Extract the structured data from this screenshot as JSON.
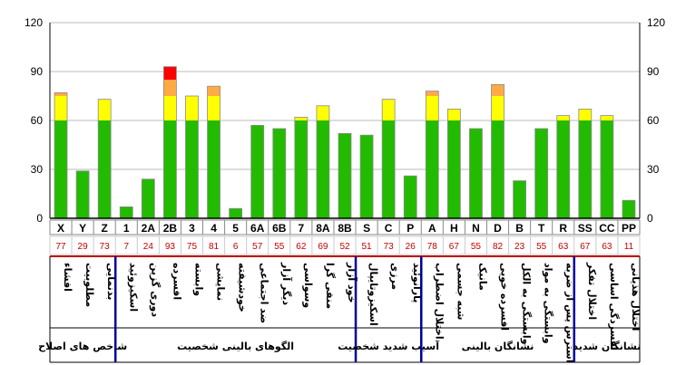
{
  "chart_data": {
    "type": "bar",
    "stacked": true,
    "ylim": [
      0,
      120
    ],
    "yticks": [
      0,
      30,
      60,
      90,
      120
    ],
    "grid": true,
    "categories": [
      "X",
      "Y",
      "Z",
      "1",
      "2A",
      "2B",
      "3",
      "4",
      "5",
      "6A",
      "6B",
      "7",
      "8A",
      "8B",
      "S",
      "C",
      "P",
      "A",
      "H",
      "N",
      "D",
      "B",
      "T",
      "R",
      "SS",
      "CC",
      "PP"
    ],
    "values": [
      77,
      29,
      73,
      7,
      24,
      93,
      75,
      81,
      6,
      57,
      55,
      62,
      69,
      52,
      51,
      73,
      26,
      78,
      67,
      55,
      82,
      23,
      55,
      63,
      67,
      63,
      11
    ],
    "descriptions": [
      "افشاء",
      "مطلوبیت",
      "بدنمایی",
      "اسکیزوئید",
      "دوری گزین",
      "افسرده",
      "وابسته",
      "نمایشی",
      "خودشیفته",
      "ضد اجتماعی",
      "دیگر آزار",
      "وسواسی",
      "منفی گرا",
      "خود آزار",
      "اسکیزوتایپال",
      "مرزی",
      "پارانوئید",
      "اختلال اضطراب",
      "شبه جسمی",
      "مانیک",
      "افسرده خویی",
      "وابستگی به الکل",
      "وابستگی به مواد",
      "استرس پس از ضربه",
      "اختلال تفکر",
      "افسردگی اساسی",
      "اختلال هذیانی"
    ],
    "groups": [
      {
        "label": "شاخص های اصلاح",
        "count": 3
      },
      {
        "label": "الگوهای بالینی شخصیت",
        "count": 11
      },
      {
        "label": "آسیب شدید شخصیت",
        "count": 3
      },
      {
        "label": "نشانگان بالینی",
        "count": 7
      },
      {
        "label": "نشانگان شدید",
        "count": 3
      }
    ],
    "colors": {
      "green": "#22bb00",
      "yellow": "#ffff00",
      "orange": "#ffaa44",
      "red": "#ff0000",
      "divider": "#000099",
      "values": "#c00000"
    }
  }
}
